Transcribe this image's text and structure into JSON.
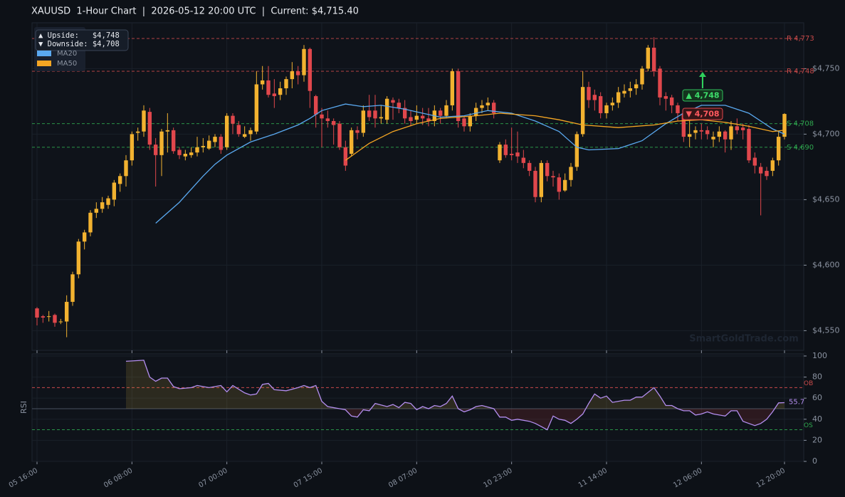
{
  "chart_data": {
    "type": "candlestick",
    "title": "XAUUSD  1-Hour Chart  |  2026-05-12 20:00 UTC  |  Current: $4,715.40",
    "categories": [
      "05 16:00",
      null,
      null,
      null,
      null,
      null,
      null,
      null,
      null,
      null,
      null,
      null,
      null,
      null,
      null,
      null,
      "06 08:00",
      null,
      null,
      null,
      null,
      null,
      null,
      null,
      null,
      null,
      null,
      null,
      null,
      null,
      null,
      null,
      "07 00:00",
      null,
      null,
      null,
      null,
      null,
      null,
      null,
      null,
      null,
      null,
      null,
      null,
      null,
      null,
      null,
      "07 15:00",
      null,
      null,
      null,
      null,
      null,
      null,
      null,
      null,
      null,
      null,
      null,
      null,
      null,
      null,
      null,
      "08 07:00",
      null,
      null,
      null,
      null,
      null,
      null,
      null,
      null,
      null,
      null,
      null,
      null,
      null,
      null,
      null,
      "10 23:00",
      null,
      null,
      null,
      null,
      null,
      null,
      null,
      null,
      null,
      null,
      null,
      null,
      null,
      null,
      null,
      "11 14:00",
      null,
      null,
      null,
      null,
      null,
      null,
      null,
      null,
      null,
      null,
      null,
      null,
      null,
      null,
      null,
      "12 06:00",
      null,
      null,
      null,
      null,
      null,
      null,
      null,
      null,
      null,
      null,
      null,
      null,
      null,
      "12 20:00"
    ],
    "ohlc": [
      [
        4567,
        4568,
        4554,
        4560
      ],
      [
        4561,
        4562,
        4556,
        4560
      ],
      [
        4561,
        4565,
        4557,
        4561
      ],
      [
        4562,
        4563,
        4553,
        4556
      ],
      [
        4557,
        4559,
        4555,
        4557
      ],
      [
        4557,
        4577,
        4545,
        4572
      ],
      [
        4572,
        4595,
        4569,
        4593
      ],
      [
        4593,
        4620,
        4590,
        4618
      ],
      [
        4618,
        4627,
        4612,
        4625
      ],
      [
        4625,
        4642,
        4622,
        4640
      ],
      [
        4640,
        4648,
        4636,
        4643
      ],
      [
        4643,
        4652,
        4640,
        4648
      ],
      [
        4646,
        4653,
        4643,
        4651
      ],
      [
        4650,
        4665,
        4645,
        4663
      ],
      [
        4662,
        4670,
        4656,
        4668
      ],
      [
        4668,
        4684,
        4660,
        4680
      ],
      [
        4680,
        4702,
        4676,
        4700
      ],
      [
        4701,
        4705,
        4695,
        4702
      ],
      [
        4702,
        4722,
        4698,
        4718
      ],
      [
        4717,
        4720,
        4688,
        4692
      ],
      [
        4692,
        4697,
        4660,
        4684
      ],
      [
        4684,
        4704,
        4668,
        4702
      ],
      [
        4702,
        4716,
        4686,
        4703
      ],
      [
        4703,
        4705,
        4685,
        4687
      ],
      [
        4688,
        4690,
        4681,
        4684
      ],
      [
        4683,
        4688,
        4680,
        4685
      ],
      [
        4684,
        4690,
        4682,
        4686
      ],
      [
        4686,
        4698,
        4683,
        4690
      ],
      [
        4690,
        4697,
        4686,
        4691
      ],
      [
        4689,
        4699,
        4688,
        4695
      ],
      [
        4694,
        4700,
        4690,
        4698
      ],
      [
        4698,
        4700,
        4685,
        4688
      ],
      [
        4690,
        4716,
        4688,
        4714
      ],
      [
        4714,
        4716,
        4700,
        4708
      ],
      [
        4707,
        4710,
        4698,
        4700
      ],
      [
        4698,
        4706,
        4697,
        4700
      ],
      [
        4700,
        4705,
        4695,
        4703
      ],
      [
        4702,
        4748,
        4700,
        4738
      ],
      [
        4738,
        4752,
        4734,
        4741
      ],
      [
        4741,
        4752,
        4728,
        4730
      ],
      [
        4731,
        4742,
        4720,
        4729
      ],
      [
        4730,
        4740,
        4726,
        4735
      ],
      [
        4735,
        4744,
        4730,
        4742
      ],
      [
        4742,
        4755,
        4735,
        4748
      ],
      [
        4748,
        4752,
        4738,
        4745
      ],
      [
        4745,
        4768,
        4740,
        4765
      ],
      [
        4765,
        4766,
        4720,
        4733
      ],
      [
        4729,
        4730,
        4705,
        4715
      ],
      [
        4715,
        4720,
        4690,
        4712
      ],
      [
        4712,
        4718,
        4705,
        4710
      ],
      [
        4710,
        4712,
        4692,
        4707
      ],
      [
        4708,
        4710,
        4688,
        4690
      ],
      [
        4690,
        4695,
        4672,
        4676
      ],
      [
        4685,
        4705,
        4683,
        4703
      ],
      [
        4703,
        4706,
        4696,
        4701
      ],
      [
        4701,
        4722,
        4698,
        4718
      ],
      [
        4718,
        4730,
        4710,
        4713
      ],
      [
        4718,
        4730,
        4705,
        4712
      ],
      [
        4712,
        4722,
        4708,
        4713
      ],
      [
        4711,
        4729,
        4708,
        4727
      ],
      [
        4726,
        4728,
        4711,
        4724
      ],
      [
        4724,
        4727,
        4716,
        4720
      ],
      [
        4720,
        4726,
        4708,
        4712
      ],
      [
        4713,
        4718,
        4706,
        4710
      ],
      [
        4711,
        4722,
        4708,
        4714
      ],
      [
        4714,
        4720,
        4707,
        4712
      ],
      [
        4712,
        4720,
        4706,
        4710
      ],
      [
        4710,
        4722,
        4706,
        4718
      ],
      [
        4718,
        4720,
        4708,
        4714
      ],
      [
        4714,
        4726,
        4712,
        4722
      ],
      [
        4722,
        4750,
        4718,
        4748
      ],
      [
        4748,
        4750,
        4705,
        4710
      ],
      [
        4712,
        4714,
        4702,
        4706
      ],
      [
        4706,
        4716,
        4702,
        4714
      ],
      [
        4714,
        4724,
        4710,
        4720
      ],
      [
        4720,
        4726,
        4716,
        4722
      ],
      [
        4722,
        4728,
        4718,
        4724
      ],
      [
        4724,
        4726,
        4712,
        4716
      ],
      [
        4680,
        4694,
        4678,
        4692
      ],
      [
        4692,
        4696,
        4682,
        4684
      ],
      [
        4685,
        4705,
        4680,
        4684
      ],
      [
        4686,
        4702,
        4678,
        4683
      ],
      [
        4682,
        4688,
        4674,
        4678
      ],
      [
        4678,
        4680,
        4668,
        4672
      ],
      [
        4672,
        4675,
        4648,
        4652
      ],
      [
        4652,
        4680,
        4648,
        4678
      ],
      [
        4678,
        4680,
        4664,
        4668
      ],
      [
        4668,
        4672,
        4660,
        4667
      ],
      [
        4667,
        4670,
        4650,
        4656
      ],
      [
        4657,
        4670,
        4656,
        4665
      ],
      [
        4665,
        4678,
        4660,
        4675
      ],
      [
        4675,
        4702,
        4672,
        4700
      ],
      [
        4700,
        4748,
        4698,
        4736
      ],
      [
        4736,
        4740,
        4720,
        4726
      ],
      [
        4730,
        4734,
        4718,
        4726
      ],
      [
        4729,
        4732,
        4712,
        4716
      ],
      [
        4716,
        4724,
        4712,
        4722
      ],
      [
        4722,
        4728,
        4718,
        4724
      ],
      [
        4724,
        4736,
        4720,
        4732
      ],
      [
        4731,
        4738,
        4728,
        4733
      ],
      [
        4733,
        4740,
        4728,
        4735
      ],
      [
        4735,
        4742,
        4730,
        4738
      ],
      [
        4738,
        4752,
        4734,
        4750
      ],
      [
        4750,
        4768,
        4748,
        4766
      ],
      [
        4766,
        4774,
        4744,
        4748
      ],
      [
        4750,
        4752,
        4722,
        4728
      ],
      [
        4729,
        4732,
        4718,
        4727
      ],
      [
        4728,
        4730,
        4716,
        4722
      ],
      [
        4722,
        4724,
        4710,
        4716
      ],
      [
        4716,
        4718,
        4694,
        4698
      ],
      [
        4698,
        4712,
        4690,
        4700
      ],
      [
        4701,
        4706,
        4696,
        4703
      ],
      [
        4703,
        4708,
        4696,
        4702
      ],
      [
        4703,
        4706,
        4696,
        4700
      ],
      [
        4696,
        4702,
        4690,
        4698
      ],
      [
        4698,
        4706,
        4694,
        4702
      ],
      [
        4702,
        4703,
        4686,
        4696
      ],
      [
        4696,
        4710,
        4688,
        4706
      ],
      [
        4706,
        4712,
        4700,
        4703
      ],
      [
        4705,
        4708,
        4696,
        4703
      ],
      [
        4704,
        4707,
        4678,
        4680
      ],
      [
        4682,
        4686,
        4670,
        4676
      ],
      [
        4675,
        4678,
        4638,
        4670
      ],
      [
        4672,
        4675,
        4665,
        4668
      ],
      [
        4672,
        4682,
        4668,
        4680
      ],
      [
        4680,
        4702,
        4676,
        4698
      ],
      [
        4698,
        4716,
        4696,
        4715.4
      ]
    ],
    "up_color": "#f2b230",
    "down_color": "#e0474c",
    "ylim": [
      4535,
      4785
    ],
    "yticks": [
      {
        "value": 4550,
        "label": "$4,550"
      },
      {
        "value": 4600,
        "label": "$4,600"
      },
      {
        "value": 4650,
        "label": "$4,650"
      },
      {
        "value": 4700,
        "label": "$4,700"
      },
      {
        "value": 4750,
        "label": "$4,750"
      }
    ],
    "grid": true,
    "levels": [
      {
        "value": 4773,
        "label": "R 4,773",
        "color": "#c94a4a"
      },
      {
        "value": 4748,
        "label": "R 4,748",
        "color": "#c94a4a"
      },
      {
        "value": 4708,
        "label": "S 4,708",
        "color": "#2fa84f"
      },
      {
        "value": 4690,
        "label": "S 4,690",
        "color": "#2fa84f"
      }
    ],
    "series": [
      {
        "name": "MA20",
        "color": "#5aa9f0",
        "x": [
          20,
          24,
          28,
          30,
          32,
          36,
          40,
          44,
          46,
          48,
          52,
          55,
          58,
          62,
          65,
          68,
          72,
          76,
          80,
          84,
          88,
          91,
          93,
          98,
          102,
          106,
          109,
          112,
          116,
          120,
          124,
          126
        ],
        "values": [
          4632,
          4648,
          4668,
          4677,
          4684,
          4694,
          4700,
          4707,
          4712,
          4718,
          4723,
          4721,
          4722,
          4719,
          4716,
          4713,
          4714,
          4718,
          4716,
          4710,
          4702,
          4690,
          4688,
          4689,
          4695,
          4708,
          4716,
          4722,
          4722,
          4716,
          4704,
          4700
        ]
      },
      {
        "name": "MA50",
        "color": "#f5a623",
        "x": [
          52,
          56,
          60,
          64,
          68,
          74,
          78,
          84,
          88,
          92,
          98,
          104,
          108,
          112,
          116,
          120,
          124,
          126
        ],
        "values": [
          4680,
          4693,
          4702,
          4708,
          4712,
          4714,
          4716,
          4714,
          4711,
          4707,
          4705,
          4707,
          4710,
          4711,
          4709,
          4706,
          4702,
          4703
        ]
      }
    ],
    "info": [
      "▲ Upside:   $4,748",
      "▼ Downside: $4,708"
    ],
    "annotations": [
      "▲ 4,748",
      "▼ 4,708"
    ],
    "watermark": "SmartGoldTrade.com",
    "rsi": {
      "ylabel": "RSI",
      "color": "#b48ef0",
      "ylim": [
        0,
        102
      ],
      "yticks": [
        0,
        20,
        40,
        60,
        80,
        100
      ],
      "midline": 50,
      "overbought": {
        "value": 70,
        "label": "OB"
      },
      "oversold": {
        "value": 30,
        "label": "OS"
      },
      "x": [
        15,
        18,
        19,
        20,
        21,
        22,
        23,
        24,
        26,
        27,
        29,
        31,
        32,
        33,
        35,
        36,
        37,
        38,
        39,
        40,
        42,
        44,
        45,
        46,
        47,
        48,
        49,
        51,
        52,
        53,
        54,
        55,
        56,
        57,
        59,
        60,
        61,
        62,
        63,
        64,
        65,
        66,
        67,
        68,
        69,
        70,
        71,
        72,
        73,
        74,
        75,
        77,
        78,
        79,
        80,
        81,
        83,
        84,
        85,
        86,
        87,
        88,
        89,
        90,
        91,
        92,
        93,
        94,
        95,
        96,
        97,
        99,
        100,
        101,
        102,
        104,
        105,
        106,
        107,
        108,
        109,
        110,
        111,
        112,
        113,
        114,
        116,
        117,
        118,
        119,
        120,
        121,
        122,
        123,
        124,
        125,
        126
      ],
      "values": [
        95,
        96,
        80,
        76,
        79,
        79,
        71,
        69,
        70,
        72,
        70,
        72,
        66,
        72,
        65,
        63,
        64,
        73,
        74,
        68,
        67,
        70,
        72,
        70,
        72,
        57,
        52,
        50,
        49,
        43,
        42,
        49,
        48,
        55,
        52,
        54,
        51,
        56,
        55,
        49,
        52,
        50,
        53,
        52,
        55,
        62,
        50,
        47,
        49,
        52,
        53,
        50,
        42,
        42,
        39,
        40,
        38,
        36,
        33,
        30,
        43,
        40,
        39,
        36,
        40,
        45,
        55,
        64,
        60,
        62,
        56,
        58,
        58,
        61,
        61,
        70,
        62,
        53,
        53,
        50,
        48,
        48,
        44,
        45,
        47,
        45,
        43,
        48,
        48,
        38,
        36,
        34,
        36,
        40,
        47,
        55.5,
        55.7
      ]
    }
  }
}
